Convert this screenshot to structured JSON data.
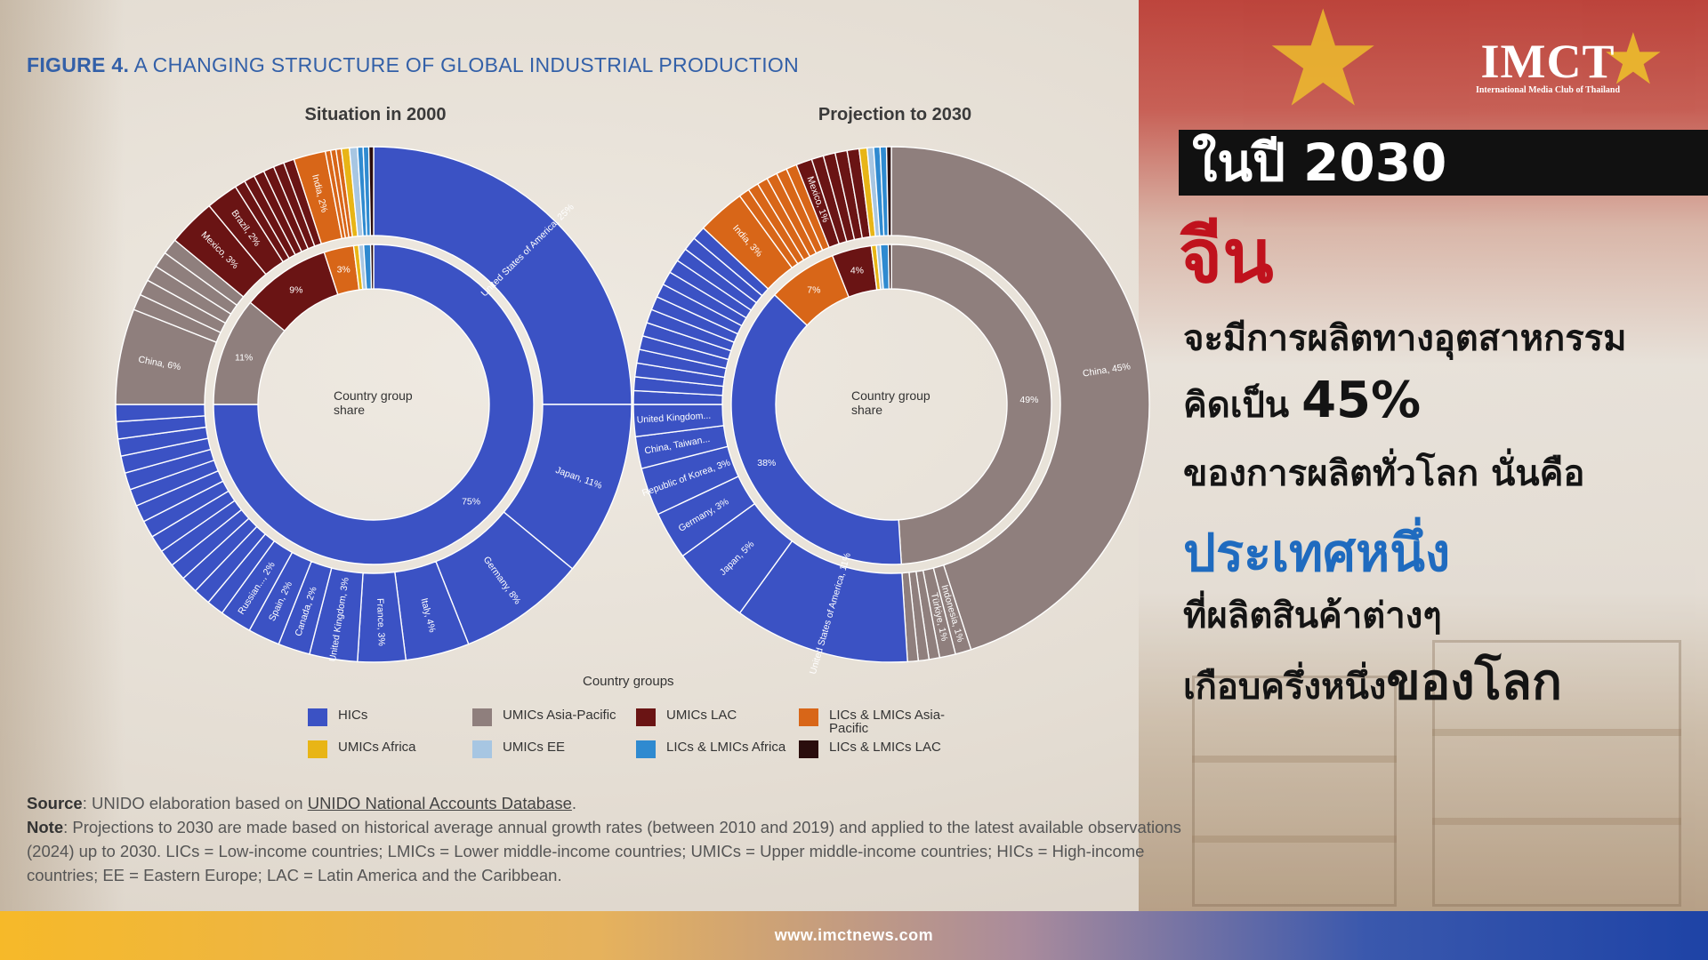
{
  "figure_title": {
    "prefix": "FIGURE 4.",
    "text": "A CHANGING STRUCTURE OF GLOBAL INDUSTRIAL PRODUCTION"
  },
  "colors": {
    "HICs": "#3b52c4",
    "UMICs Asia-Pacific": "#8f7f7d",
    "UMICs LAC": "#6a1414",
    "LICs & LMICs Asia-Pacific": "#d86618",
    "UMICs Africa": "#e8b516",
    "UMICs EE": "#a7c6e2",
    "LICs & LMICs Africa": "#2f8ad0",
    "LICs & LMICs LAC": "#2a0d0d"
  },
  "chart_data": [
    {
      "type": "pie",
      "title": "Situation in 2000",
      "center_label": [
        "Country group",
        "share"
      ],
      "inner": [
        {
          "group": "HICs",
          "value": 75,
          "label": "75%"
        },
        {
          "group": "UMICs Asia-Pacific",
          "value": 11,
          "label": "11%"
        },
        {
          "group": "UMICs LAC",
          "value": 9,
          "label": "9%"
        },
        {
          "group": "LICs & LMICs Asia-Pacific",
          "value": 3,
          "label": "3%"
        },
        {
          "group": "UMICs Africa",
          "value": 0.5,
          "label": ""
        },
        {
          "group": "UMICs EE",
          "value": 0.5,
          "label": ""
        },
        {
          "group": "LICs & LMICs Africa",
          "value": 0.7,
          "label": ""
        },
        {
          "group": "LICs & LMICs LAC",
          "value": 0.3,
          "label": ""
        }
      ],
      "outer": [
        {
          "group": "HICs",
          "value": 25,
          "label": "United States of America, 25%"
        },
        {
          "group": "HICs",
          "value": 11,
          "label": "Japan, 11%"
        },
        {
          "group": "HICs",
          "value": 8,
          "label": "Germany, 8%"
        },
        {
          "group": "HICs",
          "value": 4,
          "label": "Italy, 4%"
        },
        {
          "group": "HICs",
          "value": 3,
          "label": "France, 3%"
        },
        {
          "group": "HICs",
          "value": 3,
          "label": "United Kingdom, 3%"
        },
        {
          "group": "HICs",
          "value": 2,
          "label": "Canada, 2%"
        },
        {
          "group": "HICs",
          "value": 2,
          "label": "Spain, 2%"
        },
        {
          "group": "HICs",
          "value": 2,
          "label": "Russian..., 2%"
        },
        {
          "group": "HICs",
          "value": 15,
          "label": "",
          "slices": 14
        },
        {
          "group": "UMICs Asia-Pacific",
          "value": 6,
          "label": "China, 6%"
        },
        {
          "group": "UMICs Asia-Pacific",
          "value": 5,
          "label": "",
          "slices": 5
        },
        {
          "group": "UMICs LAC",
          "value": 3,
          "label": "Mexico, 3%"
        },
        {
          "group": "UMICs LAC",
          "value": 2,
          "label": "Brazil, 2%"
        },
        {
          "group": "UMICs LAC",
          "value": 4,
          "label": "",
          "slices": 6
        },
        {
          "group": "LICs & LMICs Asia-Pacific",
          "value": 2,
          "label": "India, 2%"
        },
        {
          "group": "LICs & LMICs Asia-Pacific",
          "value": 1,
          "label": "",
          "slices": 3
        },
        {
          "group": "UMICs Africa",
          "value": 0.5,
          "label": ""
        },
        {
          "group": "UMICs EE",
          "value": 0.5,
          "label": ""
        },
        {
          "group": "LICs & LMICs Africa",
          "value": 0.7,
          "label": "",
          "slices": 2
        },
        {
          "group": "LICs & LMICs LAC",
          "value": 0.3,
          "label": ""
        }
      ]
    },
    {
      "type": "pie",
      "title": "Projection to 2030",
      "center_label": [
        "Country group",
        "share"
      ],
      "inner": [
        {
          "group": "UMICs Asia-Pacific",
          "value": 49,
          "label": "49%"
        },
        {
          "group": "HICs",
          "value": 38,
          "label": "38%"
        },
        {
          "group": "LICs & LMICs Asia-Pacific",
          "value": 7,
          "label": "7%"
        },
        {
          "group": "UMICs LAC",
          "value": 4,
          "label": "4%"
        },
        {
          "group": "UMICs Africa",
          "value": 0.5,
          "label": ""
        },
        {
          "group": "UMICs EE",
          "value": 0.4,
          "label": ""
        },
        {
          "group": "LICs & LMICs Africa",
          "value": 0.8,
          "label": ""
        },
        {
          "group": "LICs & LMICs LAC",
          "value": 0.3,
          "label": ""
        }
      ],
      "outer": [
        {
          "group": "UMICs Asia-Pacific",
          "value": 45,
          "label": "China, 45%"
        },
        {
          "group": "UMICs Asia-Pacific",
          "value": 1,
          "label": "Indonesia, 1%"
        },
        {
          "group": "UMICs Asia-Pacific",
          "value": 1,
          "label": "Türkiye, 1%"
        },
        {
          "group": "UMICs Asia-Pacific",
          "value": 2,
          "label": "",
          "slices": 3
        },
        {
          "group": "HICs",
          "value": 11,
          "label": "United States of America, 11%"
        },
        {
          "group": "HICs",
          "value": 5,
          "label": "Japan, 5%"
        },
        {
          "group": "HICs",
          "value": 3,
          "label": "Germany, 3%"
        },
        {
          "group": "HICs",
          "value": 3,
          "label": "Republic of Korea, 3%"
        },
        {
          "group": "HICs",
          "value": 2,
          "label": "China, Taiwan..."
        },
        {
          "group": "HICs",
          "value": 2,
          "label": "United Kingdom..."
        },
        {
          "group": "HICs",
          "value": 12,
          "label": "",
          "slices": 14
        },
        {
          "group": "LICs & LMICs Asia-Pacific",
          "value": 3,
          "label": "India, 3%"
        },
        {
          "group": "LICs & LMICs Asia-Pacific",
          "value": 4,
          "label": "",
          "slices": 6
        },
        {
          "group": "UMICs LAC",
          "value": 1,
          "label": "Mexico, 1%"
        },
        {
          "group": "UMICs LAC",
          "value": 3,
          "label": "",
          "slices": 4
        },
        {
          "group": "UMICs Africa",
          "value": 0.5,
          "label": ""
        },
        {
          "group": "UMICs EE",
          "value": 0.4,
          "label": ""
        },
        {
          "group": "LICs & LMICs Africa",
          "value": 0.8,
          "label": "",
          "slices": 2
        },
        {
          "group": "LICs & LMICs LAC",
          "value": 0.3,
          "label": ""
        }
      ]
    }
  ],
  "legend": {
    "title": "Country groups",
    "items": [
      "HICs",
      "UMICs Asia-Pacific",
      "UMICs LAC",
      "LICs & LMICs Asia-Pacific",
      "UMICs Africa",
      "UMICs EE",
      "LICs & LMICs Africa",
      "LICs & LMICs LAC"
    ]
  },
  "source": {
    "label": "Source",
    "pre": ": UNIDO elaboration based on ",
    "link": "UNIDO National Accounts Database",
    "post": ".",
    "note_label": "Note",
    "note": ": Projections to 2030 are made based on historical average annual growth rates (between 2010 and 2019) and applied to the latest available observations (2024) up to 2030. LICs = Low-income countries; LMICs = Lower middle-income countries; UMICs = Upper middle-income countries; HICs = High-income countries; EE = Eastern Europe; LAC = Latin America and the Caribbean."
  },
  "logo": {
    "main": "IMCT",
    "sub": "International Media Club of Thailand"
  },
  "headline": {
    "year": "ในปี 2030",
    "china": "จีน",
    "line1": "จะมีการผลิตทางอุตสาหกรรม",
    "line2_a": "คิดเป็น ",
    "line2_b": "45%",
    "line3": "ของการผลิตทั่วโลก นั่นคือ",
    "blue": "ประเทศหนึ่ง",
    "line4": "ที่ผลิตสินค้าต่างๆ",
    "line5_a": "เกือบครึ่งหนึ่ง",
    "line5_b": "ของโลก"
  },
  "footer": {
    "url": "www.imctnews.com"
  }
}
